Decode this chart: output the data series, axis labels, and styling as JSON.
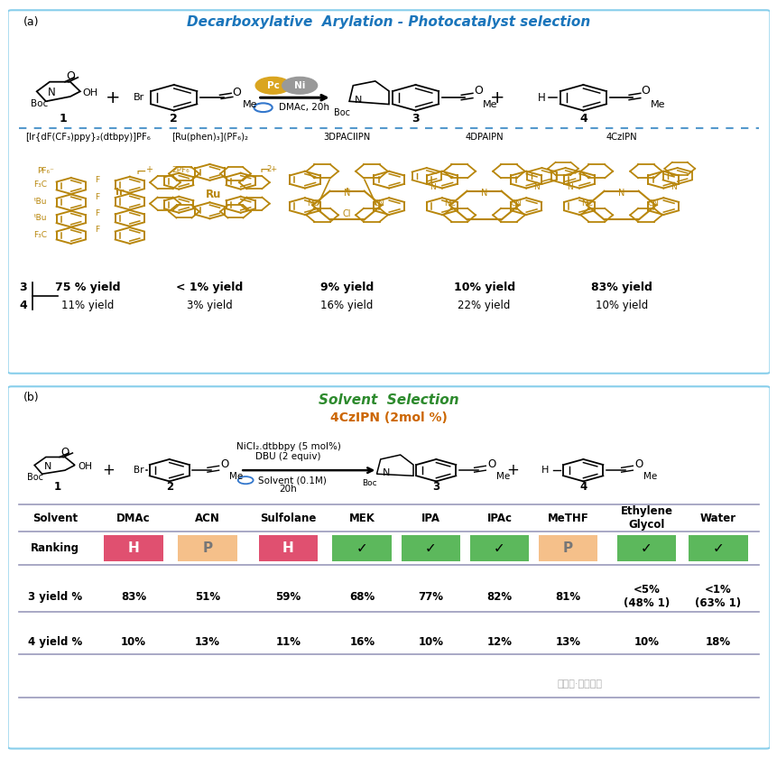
{
  "title_a": "Decarboxylative  Arylation - Photocatalyst selection",
  "title_b": "Solvent  Selection",
  "border_color": "#87CEEB",
  "catalyst_names": [
    "[Ir{dF(CF₃)ppy}₂(dtbpy)]PF₆",
    "[Ru(phen)₃](PF₆)₂",
    "3DPACIlPN",
    "4DPAIPN",
    "4CzIPN"
  ],
  "yield_3": [
    "75 % yield",
    "< 1% yield",
    "9% yield",
    "10% yield",
    "83% yield"
  ],
  "yield_4": [
    "11% yield",
    "3% yield",
    "16% yield",
    "22% yield",
    "10% yield"
  ],
  "solvent_headers": [
    "Solvent",
    "DMAc",
    "ACN",
    "Sulfolane",
    "MEK",
    "IPA",
    "IPAc",
    "MeTHF",
    "Ethylene\nGlycol",
    "Water"
  ],
  "ranking_colors": [
    "#e05070",
    "#f5c08a",
    "#e05070",
    "#5cb85c",
    "#5cb85c",
    "#5cb85c",
    "#f5c08a",
    "#5cb85c",
    "#5cb85c"
  ],
  "ranking_labels": [
    "H",
    "P",
    "H",
    "✓",
    "✓",
    "✓",
    "P",
    "✓",
    "✓"
  ],
  "yield3_row": [
    "83%",
    "51%",
    "59%",
    "68%",
    "77%",
    "82%",
    "81%",
    "<5%\n(48% 1)",
    "<1%\n(63% 1)"
  ],
  "yield4_row": [
    "10%",
    "13%",
    "11%",
    "16%",
    "10%",
    "12%",
    "13%",
    "10%",
    "18%"
  ],
  "golden_color": "#B8860B",
  "title_color_a": "#1a75bb",
  "title_color_b": "#2d8a2d",
  "subtitle_4czipn": "4CzIPN (2mol %)"
}
